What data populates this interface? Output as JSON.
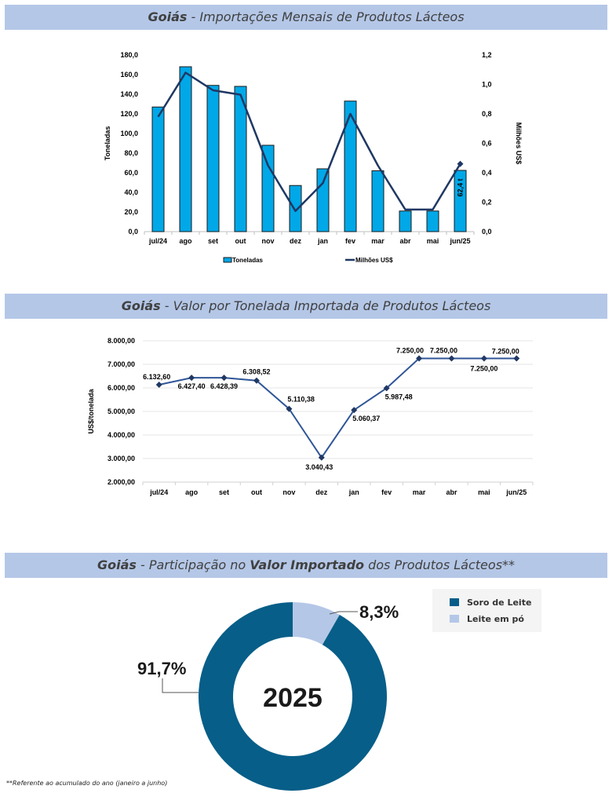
{
  "sections": {
    "imports": {
      "title_bold": "Goiás",
      "title_rest": " - Importações Mensais de Produtos Lácteos"
    },
    "price": {
      "title_bold": "Goiás",
      "title_rest": " - Valor por Tonelada Importada de Produtos Lácteos"
    },
    "share": {
      "title_bold": "Goiás",
      "title_mid": " - Participação no ",
      "title_bold2": "Valor Importado",
      "title_rest": " dos Produtos Lácteos**"
    }
  },
  "footnote": "**Referente ao acumulado do ano (janeiro a junho)",
  "colors": {
    "bar": "#00a8e8",
    "line": "#1f3864",
    "price_line": "#2f5597",
    "donut_main": "#075e88",
    "donut_minor": "#b4c7e7",
    "banner": "#b4c7e7"
  },
  "chart_data": [
    {
      "type": "bar",
      "title": "Goiás - Importações Mensais de Produtos Lácteos",
      "categories": [
        "jul/24",
        "ago",
        "set",
        "out",
        "nov",
        "dez",
        "jan",
        "fev",
        "mar",
        "abr",
        "mai",
        "jun/25"
      ],
      "series": [
        {
          "name": "Toneladas",
          "type": "bar",
          "axis": "left",
          "values": [
            127,
            168,
            149,
            148,
            88,
            47,
            64,
            133,
            62,
            21,
            21,
            62.4
          ]
        },
        {
          "name": "Milhões US$",
          "type": "line",
          "axis": "right",
          "values": [
            0.78,
            1.08,
            0.96,
            0.93,
            0.45,
            0.14,
            0.33,
            0.8,
            0.45,
            0.15,
            0.15,
            0.46
          ]
        }
      ],
      "ylabel": "Toneladas",
      "y2label": "Milhões US$",
      "ylim": [
        0,
        180
      ],
      "y2lim": [
        0,
        1.2
      ],
      "yticks": [
        "0,0",
        "20,0",
        "40,0",
        "60,0",
        "80,0",
        "100,0",
        "120,0",
        "140,0",
        "160,0",
        "180,0"
      ],
      "y2ticks": [
        "0,0",
        "0,2",
        "0,4",
        "0,6",
        "0,8",
        "1,0",
        "1,2"
      ],
      "annotation": "62,4 t",
      "legend": [
        "Toneladas",
        "Milhões US$"
      ],
      "legend_position": "bottom"
    },
    {
      "type": "line",
      "title": "Goiás - Valor por Tonelada Importada de Produtos Lácteos",
      "categories": [
        "jul/24",
        "ago",
        "set",
        "out",
        "nov",
        "dez",
        "jan",
        "fev",
        "mar",
        "abr",
        "mai",
        "jun/25"
      ],
      "values": [
        6132.6,
        6427.4,
        6428.39,
        6308.52,
        5110.38,
        3040.43,
        5060.37,
        5987.48,
        7250.0,
        7250.0,
        7250.0,
        7250.0
      ],
      "labels": [
        "6.132,60",
        "6.427,40",
        "6.428,39",
        "6.308,52",
        "5.110,38",
        "3.040,43",
        "5.060,37",
        "5.987,48",
        "7.250,00",
        "7.250,00",
        "7.250,00",
        "7.250,00"
      ],
      "ylabel": "US$/tonelada",
      "ylim": [
        2000,
        8000
      ],
      "yticks": [
        "2.000,00",
        "3.000,00",
        "4.000,00",
        "5.000,00",
        "6.000,00",
        "7.000,00",
        "8.000,00"
      ],
      "grid": true
    },
    {
      "type": "pie",
      "title": "Goiás - Participação no Valor Importado dos Produtos Lácteos**",
      "center_label": "2025",
      "slices": [
        {
          "name": "Leite em pó",
          "value": 8.3,
          "label": "8,3%"
        },
        {
          "name": "Soro de Leite",
          "value": 91.7,
          "label": "91,7%"
        }
      ],
      "legend": [
        "Soro de Leite",
        "Leite em pó"
      ],
      "legend_position": "top-right"
    }
  ]
}
